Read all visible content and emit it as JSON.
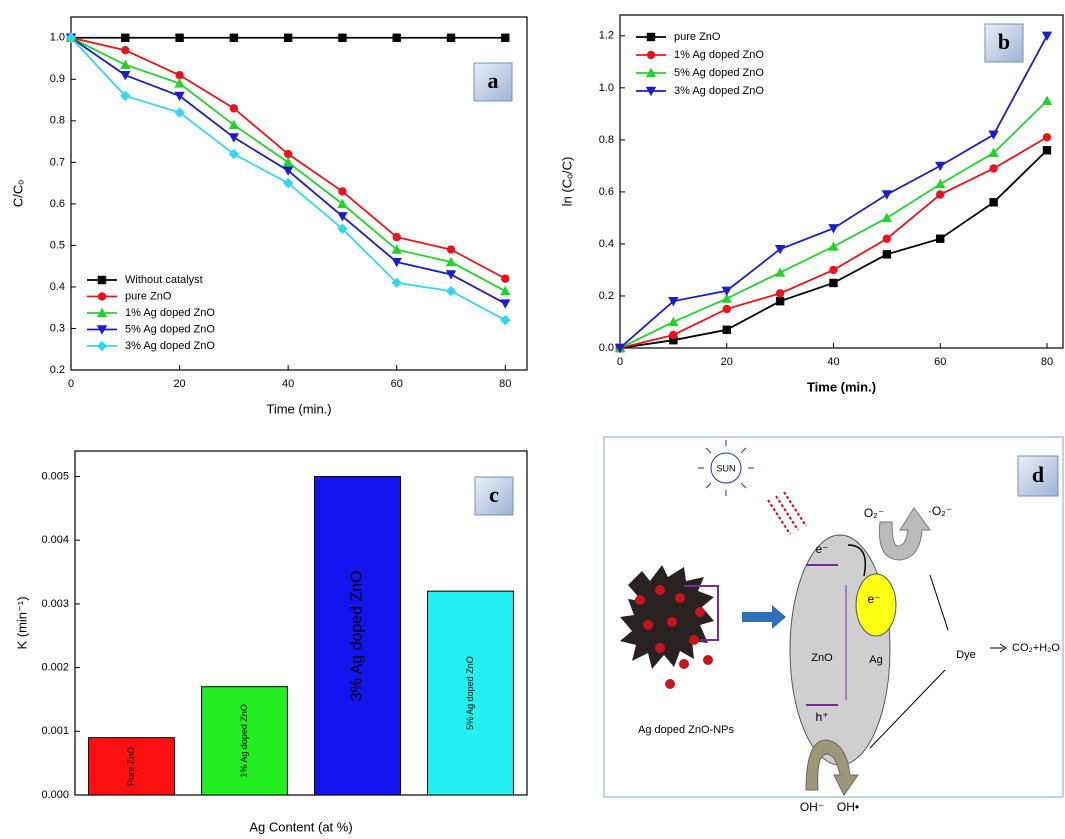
{
  "chart_data": [
    {
      "type": "line",
      "panel_label": "a",
      "xlabel": "Time (min.)",
      "ylabel": "C/Cₒ",
      "x": [
        0,
        10,
        20,
        30,
        40,
        50,
        60,
        70,
        80
      ],
      "series": [
        {
          "name": "Without catalyst",
          "color": "#000000",
          "marker": "square",
          "values": [
            1,
            1,
            1,
            1,
            1,
            1,
            1,
            1,
            1
          ]
        },
        {
          "name": "pure ZnO",
          "color": "#e8141c",
          "marker": "circle",
          "values": [
            1,
            0.97,
            0.91,
            0.83,
            0.72,
            0.63,
            0.52,
            0.49,
            0.42
          ]
        },
        {
          "name": "1% Ag doped ZnO",
          "color": "#22d32e",
          "marker": "triangle-up",
          "values": [
            1,
            0.935,
            0.89,
            0.79,
            0.7,
            0.6,
            0.49,
            0.46,
            0.39
          ]
        },
        {
          "name": "5% Ag doped ZnO",
          "color": "#1c1cc8",
          "marker": "triangle-down",
          "values": [
            1,
            0.91,
            0.86,
            0.76,
            0.68,
            0.57,
            0.46,
            0.43,
            0.36
          ]
        },
        {
          "name": "3% Ag doped ZnO",
          "color": "#33d6f0",
          "marker": "diamond",
          "values": [
            1,
            0.86,
            0.82,
            0.72,
            0.65,
            0.54,
            0.41,
            0.39,
            0.32
          ]
        }
      ],
      "xlim": [
        0,
        84
      ],
      "xticks": [
        0,
        20,
        40,
        60,
        80
      ],
      "ylim": [
        0.2,
        1.05
      ],
      "yticks": [
        0.2,
        0.3,
        0.4,
        0.5,
        0.6,
        0.7,
        0.8,
        0.9,
        {
          "value": 1,
          "label": "1.0"
        }
      ],
      "legend": "lower left"
    },
    {
      "type": "line",
      "panel_label": "b",
      "xlabel": "Time (min.)",
      "ylabel": "ln (Cₒ/C)",
      "x": [
        0,
        10,
        20,
        30,
        40,
        50,
        60,
        70,
        80
      ],
      "series": [
        {
          "name": "pure ZnO",
          "color": "#000000",
          "marker": "square",
          "values": [
            0,
            0.03,
            0.07,
            0.18,
            0.25,
            0.36,
            0.42,
            0.56,
            0.76
          ]
        },
        {
          "name": "1% Ag doped ZnO",
          "color": "#e8141c",
          "marker": "circle",
          "values": [
            0,
            0.05,
            0.15,
            0.21,
            0.3,
            0.42,
            0.59,
            0.69,
            0.81
          ]
        },
        {
          "name": "5% Ag doped ZnO",
          "color": "#22d32e",
          "marker": "triangle-up",
          "values": [
            0,
            0.1,
            0.19,
            0.29,
            0.39,
            0.5,
            0.63,
            0.75,
            0.95
          ]
        },
        {
          "name": "3% Ag doped ZnO",
          "color": "#1c1cc8",
          "marker": "triangle-down",
          "values": [
            0,
            0.18,
            0.22,
            0.38,
            0.46,
            0.59,
            0.7,
            0.82,
            1.2
          ]
        }
      ],
      "xlim": [
        0,
        83
      ],
      "xticks": [
        0,
        20,
        40,
        60,
        80
      ],
      "ylim": [
        0,
        1.28
      ],
      "yticks": [
        {
          "value": 0,
          "label": "0.0"
        },
        0.2,
        0.4,
        0.6,
        0.8,
        {
          "value": 1,
          "label": "1.0"
        },
        1.2
      ],
      "legend": "upper left"
    },
    {
      "type": "bar",
      "panel_label": "c",
      "xlabel": "Ag Content (at %)",
      "ylabel": "K (min⁻¹)",
      "categories": [
        "Pure ZnO",
        "1% Ag doped ZnO",
        "3% Ag doped ZnO",
        "5% Ag doped ZnO"
      ],
      "values": [
        0.0009,
        0.0017,
        0.005,
        0.0032
      ],
      "colors": [
        "#ff0f0f",
        "#22ee22",
        "#1414f0",
        "#22f0f0"
      ],
      "ylim": [
        0,
        0.0054
      ],
      "yticks": [
        {
          "value": 0,
          "label": "0.000"
        },
        0.001,
        0.002,
        0.003,
        0.004,
        0.005
      ]
    }
  ],
  "diagram": {
    "panel_label": "d",
    "sun": "SUN",
    "electron": "e⁻",
    "zno": "ZnO",
    "hole": "h⁺",
    "ag_electron": "e⁻",
    "ag": "Ag",
    "oxygen": "O₂⁻",
    "superoxide": "·O₂⁻",
    "dye": "Dye",
    "products": "CO₂+H₂O",
    "nanoparticles": "Ag doped ZnO-NPs",
    "hydroxide": "OH⁻",
    "hydroxyl": "OH•"
  }
}
